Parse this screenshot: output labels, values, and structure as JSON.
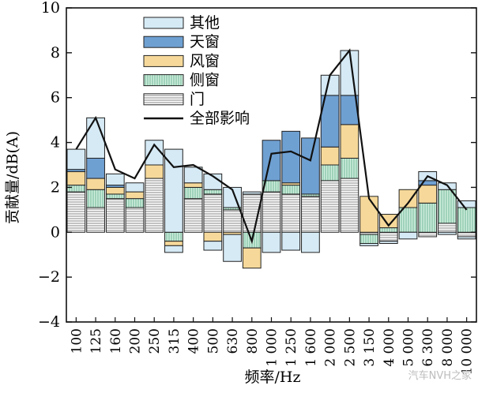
{
  "chart_data": {
    "type": "bar",
    "stacked": true,
    "xlabel": "频率/Hz",
    "ylabel": "贡献量/dB(A)",
    "ylim": [
      -4,
      10
    ],
    "yticks": [
      -4,
      -2,
      0,
      2,
      4,
      6,
      8,
      10
    ],
    "grid": false,
    "legend_position": "top-center",
    "categories": [
      "100",
      "125",
      "160",
      "200",
      "250",
      "315",
      "400",
      "500",
      "630",
      "800",
      "1 000",
      "1 250",
      "1 600",
      "2 000",
      "2 500",
      "3 150",
      "4 000",
      "5 000",
      "6 300",
      "8 000",
      "10 000"
    ],
    "series": [
      {
        "name": "门",
        "color": "#ffffff",
        "pattern": "hlines",
        "values": [
          1.8,
          1.1,
          1.5,
          1.1,
          2.4,
          0.0,
          1.5,
          1.7,
          1.0,
          1.7,
          1.8,
          1.7,
          1.6,
          2.3,
          2.4,
          -0.1,
          -0.4,
          0.0,
          -0.2,
          0.4,
          -0.2
        ]
      },
      {
        "name": "侧窗",
        "color": "#cfeedd",
        "pattern": "vlines",
        "values": [
          0.3,
          0.8,
          0.2,
          0.4,
          0.0,
          -0.4,
          0.5,
          0.2,
          0.1,
          -0.7,
          0.5,
          0.4,
          0.1,
          0.7,
          0.9,
          -0.4,
          0.2,
          1.1,
          1.3,
          1.5,
          1.1
        ]
      },
      {
        "name": "风窗",
        "color": "#f6d99a",
        "pattern": "none",
        "values": [
          0.6,
          0.5,
          0.3,
          0.3,
          0.6,
          -0.2,
          0.2,
          -0.4,
          -0.1,
          -0.9,
          0.0,
          0.1,
          0.0,
          0.8,
          1.5,
          1.6,
          0.6,
          0.8,
          0.8,
          0.0,
          0.0
        ]
      },
      {
        "name": "天窗",
        "color": "#6fa0d2",
        "pattern": "none",
        "values": [
          0.1,
          0.9,
          0.1,
          0.0,
          0.0,
          0.0,
          0.0,
          0.0,
          0.0,
          0.0,
          1.8,
          2.3,
          2.5,
          2.3,
          1.3,
          0.0,
          0.0,
          0.0,
          0.2,
          0.0,
          0.0
        ]
      },
      {
        "name": "其他",
        "color": "#d5eaf5",
        "pattern": "none",
        "values": [
          0.9,
          1.8,
          0.5,
          0.4,
          1.1,
          3.7,
          0.7,
          0.7,
          0.9,
          0.1,
          0.0,
          0.0,
          0.0,
          0.9,
          2.0,
          0.0,
          0.0,
          0.0,
          0.4,
          0.3,
          0.3
        ]
      },
      {
        "name": "其他",
        "color": "#d5eaf5",
        "pattern": "none",
        "negative_extra": true,
        "values": [
          0.0,
          0.0,
          0.0,
          0.0,
          0.0,
          -0.3,
          0.0,
          -0.4,
          -1.2,
          0.0,
          -0.9,
          -0.8,
          -0.9,
          0.0,
          0.0,
          -0.1,
          -0.1,
          -0.3,
          0.0,
          -0.1,
          -0.1
        ]
      }
    ],
    "line": {
      "name": "全部影响",
      "color": "#111111",
      "values": [
        3.7,
        5.1,
        2.8,
        2.4,
        3.9,
        2.9,
        3.0,
        2.5,
        1.9,
        -0.4,
        3.5,
        3.6,
        3.2,
        7.0,
        8.1,
        1.5,
        0.3,
        1.3,
        2.5,
        2.1,
        1.0
      ]
    }
  },
  "legend": [
    {
      "label": "其他",
      "swatch": "#d5eaf5",
      "pattern": "none"
    },
    {
      "label": "天窗",
      "swatch": "#6fa0d2",
      "pattern": "none"
    },
    {
      "label": "风窗",
      "swatch": "#f6d99a",
      "pattern": "none"
    },
    {
      "label": "侧窗",
      "swatch": "#cfeedd",
      "pattern": "vlines"
    },
    {
      "label": "门",
      "swatch": "#ffffff",
      "pattern": "hlines"
    },
    {
      "label": "全部影响",
      "swatch": "#111111",
      "pattern": "line"
    }
  ],
  "watermark": "汽车NVH之家"
}
